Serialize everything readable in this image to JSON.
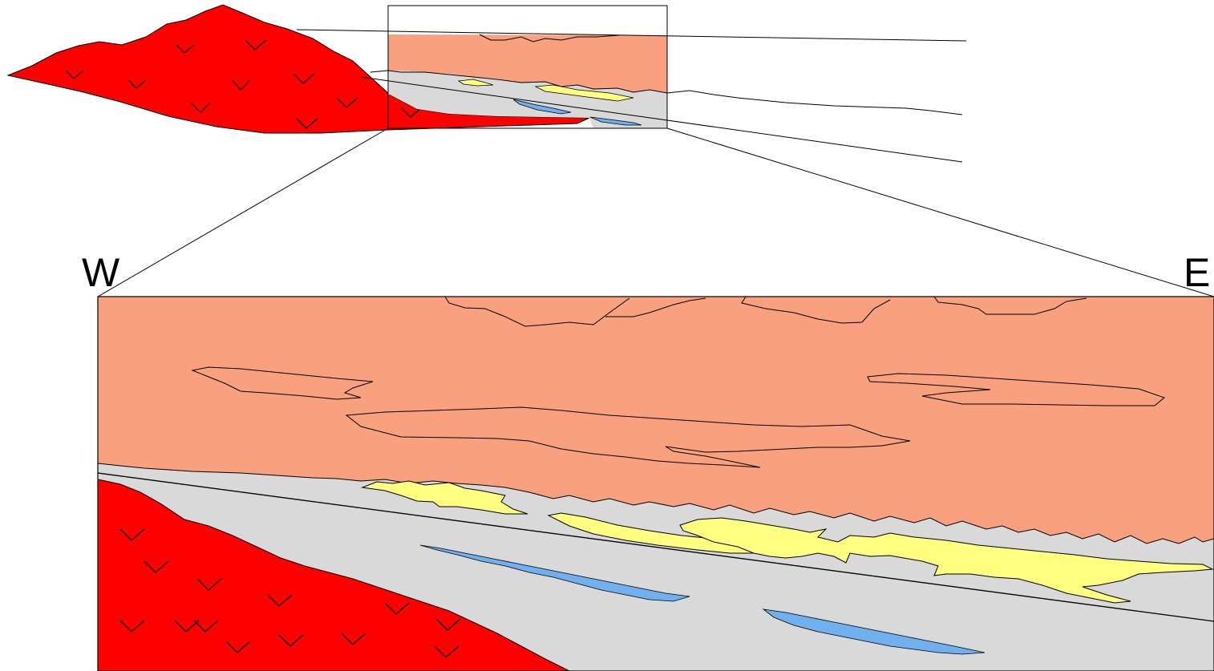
{
  "labels": {
    "west": "W",
    "east": "E"
  },
  "colors": {
    "volcanic": "#ff0000",
    "sandstone": "#f9a07f",
    "shale": "#d9d9d9",
    "sand_lens": "#ffff80",
    "water_lens": "#70b0ef",
    "outline": "#000000"
  }
}
